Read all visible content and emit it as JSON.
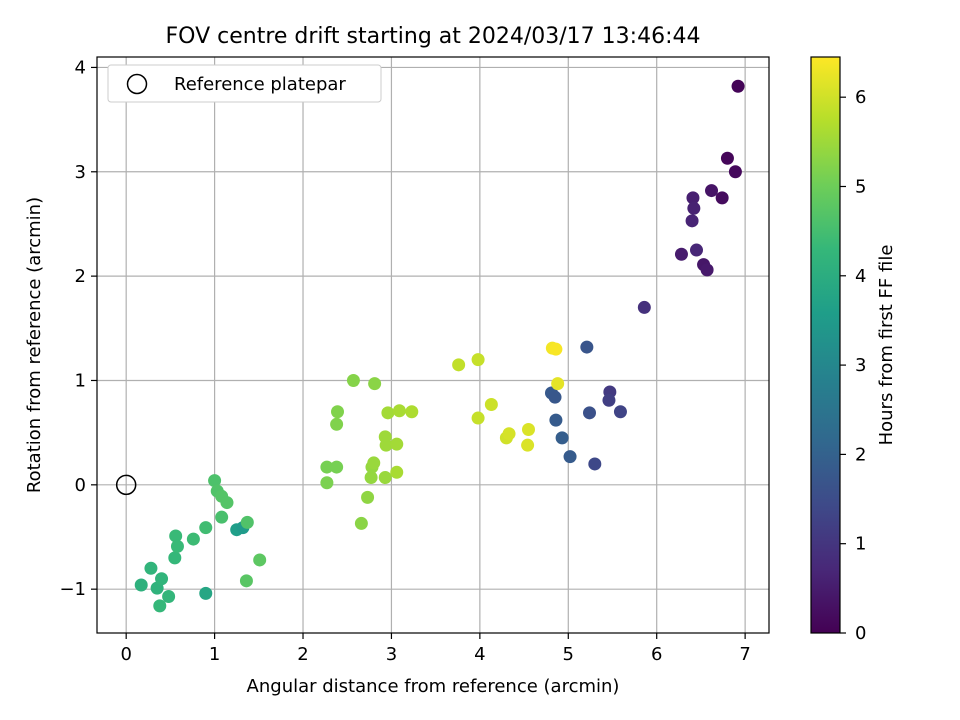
{
  "chart_data": {
    "type": "scatter",
    "title": "FOV centre drift starting at 2024/03/17 13:46:44",
    "xlabel": "Angular distance from reference (arcmin)",
    "ylabel": "Rotation from reference (arcmin)",
    "xlim": [
      -0.33,
      7.27
    ],
    "ylim": [
      -1.42,
      4.1
    ],
    "xticks": [
      0,
      1,
      2,
      3,
      4,
      5,
      6,
      7
    ],
    "yticks": [
      -1,
      0,
      1,
      2,
      3,
      4
    ],
    "grid": true,
    "legend": {
      "position": "top-left",
      "entries": [
        "Reference platepar"
      ]
    },
    "reference_point": {
      "x": 0,
      "y": 0,
      "marker": "open-circle"
    },
    "colorbar": {
      "label": "Hours from first FF file",
      "range": [
        0,
        6.45
      ],
      "ticks": [
        0,
        1,
        2,
        3,
        4,
        5,
        6
      ],
      "colormap": "viridis"
    },
    "colormap_stops": [
      "#440154",
      "#482878",
      "#3e4a89",
      "#31688e",
      "#26828e",
      "#1f9e89",
      "#35b779",
      "#6ece58",
      "#b5de2b",
      "#fde725"
    ],
    "series": [
      {
        "points": [
          {
            "x": 6.92,
            "y": 3.82,
            "c": 0.05
          },
          {
            "x": 6.8,
            "y": 3.13,
            "c": 0.1
          },
          {
            "x": 6.89,
            "y": 3.0,
            "c": 0.15
          },
          {
            "x": 6.74,
            "y": 2.75,
            "c": 0.2
          },
          {
            "x": 6.62,
            "y": 2.82,
            "c": 0.35
          },
          {
            "x": 6.41,
            "y": 2.75,
            "c": 0.55
          },
          {
            "x": 6.42,
            "y": 2.65,
            "c": 0.6
          },
          {
            "x": 6.4,
            "y": 2.53,
            "c": 0.65
          },
          {
            "x": 6.45,
            "y": 2.25,
            "c": 0.7
          },
          {
            "x": 6.28,
            "y": 2.21,
            "c": 0.5
          },
          {
            "x": 6.53,
            "y": 2.11,
            "c": 0.4
          },
          {
            "x": 6.57,
            "y": 2.06,
            "c": 0.45
          },
          {
            "x": 5.86,
            "y": 1.7,
            "c": 0.9
          },
          {
            "x": 5.21,
            "y": 1.32,
            "c": 1.7
          },
          {
            "x": 5.47,
            "y": 0.89,
            "c": 1.1
          },
          {
            "x": 5.46,
            "y": 0.81,
            "c": 1.2
          },
          {
            "x": 5.59,
            "y": 0.7,
            "c": 1.3
          },
          {
            "x": 5.24,
            "y": 0.69,
            "c": 1.6
          },
          {
            "x": 4.81,
            "y": 0.88,
            "c": 1.8
          },
          {
            "x": 4.85,
            "y": 0.84,
            "c": 1.75
          },
          {
            "x": 4.86,
            "y": 0.62,
            "c": 1.85
          },
          {
            "x": 4.93,
            "y": 0.45,
            "c": 1.9
          },
          {
            "x": 5.02,
            "y": 0.27,
            "c": 1.85
          },
          {
            "x": 5.3,
            "y": 0.2,
            "c": 1.4
          },
          {
            "x": 1.25,
            "y": -0.43,
            "c": 3.6
          },
          {
            "x": 1.32,
            "y": -0.41,
            "c": 3.5
          },
          {
            "x": 0.9,
            "y": -1.04,
            "c": 3.8
          },
          {
            "x": 0.17,
            "y": -0.96,
            "c": 4.1
          },
          {
            "x": 0.28,
            "y": -0.8,
            "c": 4.2
          },
          {
            "x": 0.35,
            "y": -0.99,
            "c": 4.15
          },
          {
            "x": 0.4,
            "y": -0.9,
            "c": 4.2
          },
          {
            "x": 0.48,
            "y": -1.07,
            "c": 4.25
          },
          {
            "x": 0.38,
            "y": -1.16,
            "c": 4.3
          },
          {
            "x": 0.55,
            "y": -0.7,
            "c": 4.3
          },
          {
            "x": 0.56,
            "y": -0.49,
            "c": 4.35
          },
          {
            "x": 0.58,
            "y": -0.59,
            "c": 4.35
          },
          {
            "x": 0.76,
            "y": -0.52,
            "c": 4.4
          },
          {
            "x": 0.9,
            "y": -0.41,
            "c": 4.45
          },
          {
            "x": 1.08,
            "y": -0.31,
            "c": 4.55
          },
          {
            "x": 1.37,
            "y": -0.36,
            "c": 4.65
          },
          {
            "x": 1.0,
            "y": 0.04,
            "c": 4.6
          },
          {
            "x": 1.03,
            "y": -0.06,
            "c": 4.65
          },
          {
            "x": 1.08,
            "y": -0.11,
            "c": 4.7
          },
          {
            "x": 1.14,
            "y": -0.17,
            "c": 4.7
          },
          {
            "x": 1.36,
            "y": -0.92,
            "c": 4.75
          },
          {
            "x": 1.51,
            "y": -0.72,
            "c": 4.8
          },
          {
            "x": 2.27,
            "y": 0.17,
            "c": 5.1
          },
          {
            "x": 2.38,
            "y": 0.17,
            "c": 5.1
          },
          {
            "x": 2.27,
            "y": 0.02,
            "c": 5.15
          },
          {
            "x": 2.39,
            "y": 0.7,
            "c": 5.2
          },
          {
            "x": 2.38,
            "y": 0.58,
            "c": 5.2
          },
          {
            "x": 2.57,
            "y": 1.0,
            "c": 5.25
          },
          {
            "x": 2.81,
            "y": 0.97,
            "c": 5.3
          },
          {
            "x": 2.66,
            "y": -0.37,
            "c": 5.3
          },
          {
            "x": 2.73,
            "y": -0.12,
            "c": 5.35
          },
          {
            "x": 2.77,
            "y": 0.07,
            "c": 5.4
          },
          {
            "x": 2.78,
            "y": 0.17,
            "c": 5.4
          },
          {
            "x": 2.8,
            "y": 0.21,
            "c": 5.45
          },
          {
            "x": 2.93,
            "y": 0.07,
            "c": 5.45
          },
          {
            "x": 2.93,
            "y": 0.46,
            "c": 5.5
          },
          {
            "x": 2.94,
            "y": 0.38,
            "c": 5.5
          },
          {
            "x": 2.96,
            "y": 0.69,
            "c": 5.55
          },
          {
            "x": 3.06,
            "y": 0.39,
            "c": 5.55
          },
          {
            "x": 3.06,
            "y": 0.12,
            "c": 5.6
          },
          {
            "x": 3.09,
            "y": 0.71,
            "c": 5.6
          },
          {
            "x": 3.23,
            "y": 0.7,
            "c": 5.65
          },
          {
            "x": 3.76,
            "y": 1.15,
            "c": 5.85
          },
          {
            "x": 3.98,
            "y": 1.2,
            "c": 5.9
          },
          {
            "x": 3.98,
            "y": 0.64,
            "c": 5.9
          },
          {
            "x": 4.13,
            "y": 0.77,
            "c": 5.95
          },
          {
            "x": 4.3,
            "y": 0.45,
            "c": 6.0
          },
          {
            "x": 4.33,
            "y": 0.49,
            "c": 6.05
          },
          {
            "x": 4.54,
            "y": 0.38,
            "c": 6.1
          },
          {
            "x": 4.55,
            "y": 0.53,
            "c": 6.1
          },
          {
            "x": 4.82,
            "y": 1.31,
            "c": 6.35
          },
          {
            "x": 4.86,
            "y": 1.3,
            "c": 6.4
          },
          {
            "x": 4.88,
            "y": 0.97,
            "c": 6.2
          }
        ]
      }
    ]
  }
}
